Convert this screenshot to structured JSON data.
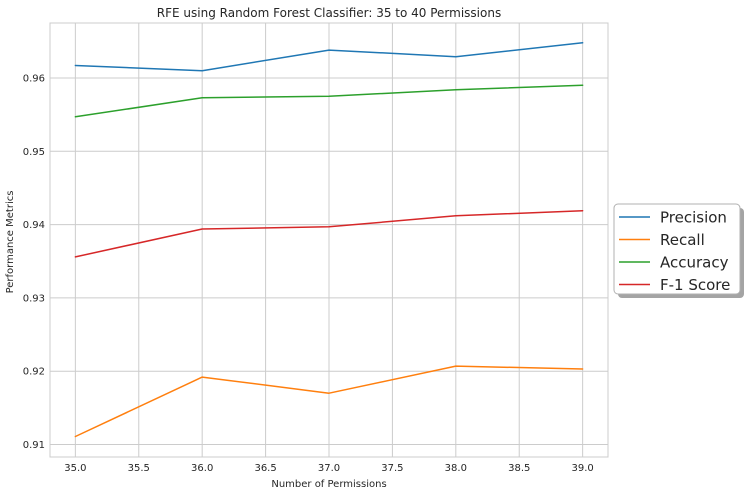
{
  "chart_data": {
    "type": "line",
    "title": "RFE using Random Forest Classifier: 35 to 40 Permissions",
    "xlabel": "Number of Permissions",
    "ylabel": "Performance Metrics",
    "xlim": [
      34.8,
      39.2
    ],
    "ylim": [
      0.9083,
      0.9675
    ],
    "xticks": [
      35.0,
      35.5,
      36.0,
      36.5,
      37.0,
      37.5,
      38.0,
      38.5,
      39.0
    ],
    "xtick_labels": [
      "35.0",
      "35.5",
      "36.0",
      "36.5",
      "37.0",
      "37.5",
      "38.0",
      "38.5",
      "39.0"
    ],
    "yticks": [
      0.91,
      0.92,
      0.93,
      0.94,
      0.95,
      0.96
    ],
    "ytick_labels": [
      "0.91",
      "0.92",
      "0.93",
      "0.94",
      "0.95",
      "0.96"
    ],
    "grid": true,
    "legend_position": "center-right-outside",
    "x": [
      35,
      36,
      37,
      38,
      39
    ],
    "series": [
      {
        "name": "Precision",
        "color": "#1f77b4",
        "values": [
          0.9617,
          0.961,
          0.9638,
          0.9629,
          0.9648
        ]
      },
      {
        "name": "Recall",
        "color": "#ff7f0e",
        "values": [
          0.9111,
          0.9192,
          0.917,
          0.9207,
          0.9203
        ]
      },
      {
        "name": "Accuracy",
        "color": "#2ca02c",
        "values": [
          0.9547,
          0.9573,
          0.9575,
          0.9584,
          0.959
        ]
      },
      {
        "name": "F-1 Score",
        "color": "#d62728",
        "values": [
          0.9356,
          0.9394,
          0.9397,
          0.9412,
          0.9419
        ]
      }
    ]
  }
}
